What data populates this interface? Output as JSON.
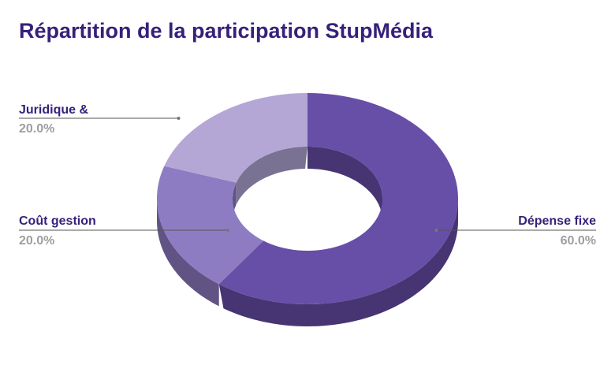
{
  "chart_data": {
    "type": "pie",
    "title": "Répartition de la participation StupMédia",
    "categories": [
      "Dépense fixe",
      "Juridique &",
      "Coût gestion"
    ],
    "values": [
      60.0,
      20.0,
      20.0
    ],
    "value_labels": [
      "60.0%",
      "20.0%",
      "20.0%"
    ],
    "colors": [
      "#674ea7",
      "#8e7cc3",
      "#b4a7d6"
    ],
    "donut": true,
    "three_d": true,
    "legend": "none"
  }
}
